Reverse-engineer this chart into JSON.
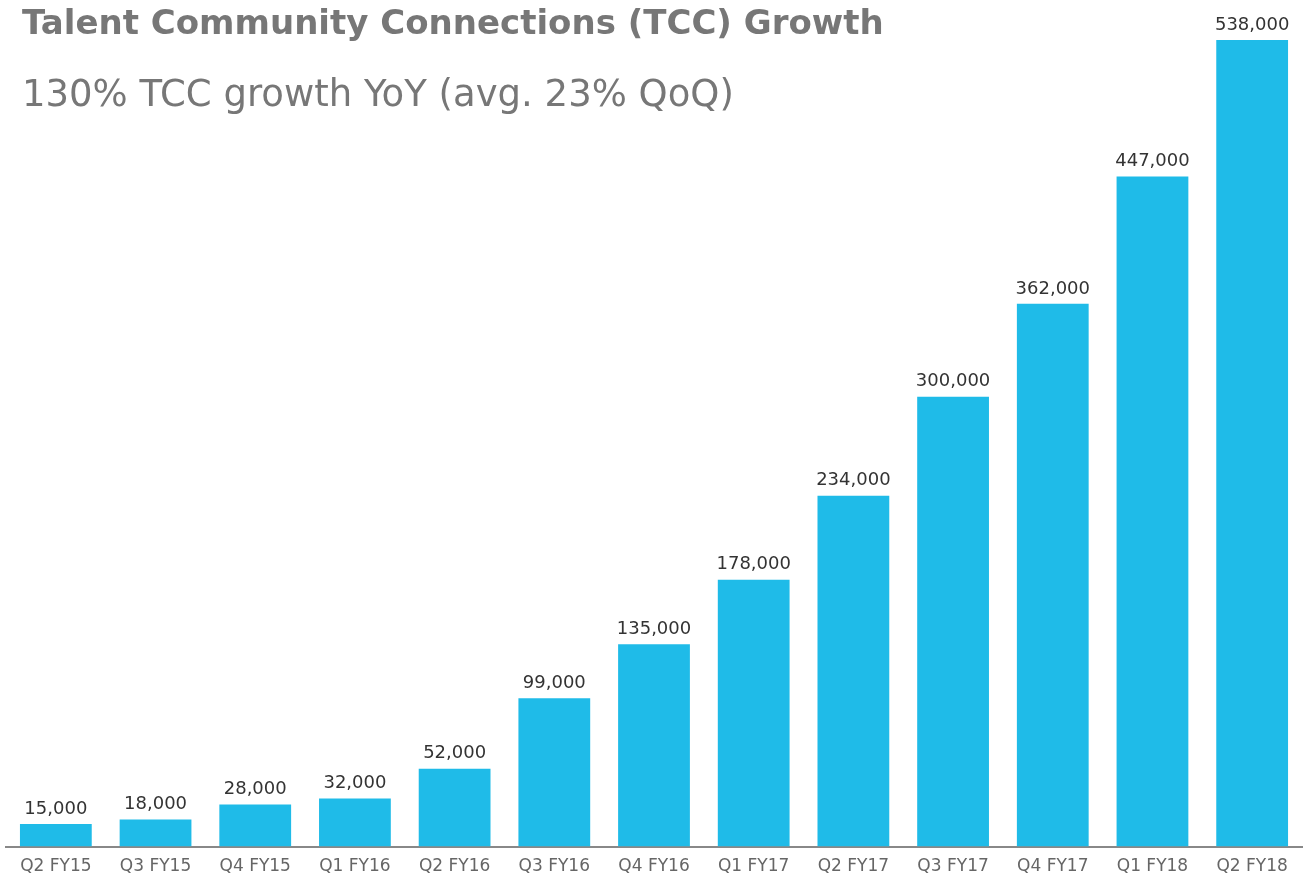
{
  "chart_data": {
    "type": "bar",
    "title": "Talent Community Connections (TCC) Growth",
    "subtitle": "130% TCC growth YoY (avg. 23% QoQ)",
    "categories": [
      "Q2 FY15",
      "Q3 FY15",
      "Q4 FY15",
      "Q1 FY16",
      "Q2 FY16",
      "Q3 FY16",
      "Q4 FY16",
      "Q1 FY17",
      "Q2 FY17",
      "Q3 FY17",
      "Q4 FY17",
      "Q1 FY18",
      "Q2 FY18"
    ],
    "values": [
      15000,
      18000,
      28000,
      32000,
      52000,
      99000,
      135000,
      178000,
      234000,
      300000,
      362000,
      447000,
      538000
    ],
    "value_labels": [
      "15,000",
      "18,000",
      "28,000",
      "32,000",
      "52,000",
      "99,000",
      "135,000",
      "178,000",
      "234,000",
      "300,000",
      "362,000",
      "447,000",
      "538,000"
    ],
    "color": "#1fbbe8",
    "grid": false,
    "legend": false
  }
}
